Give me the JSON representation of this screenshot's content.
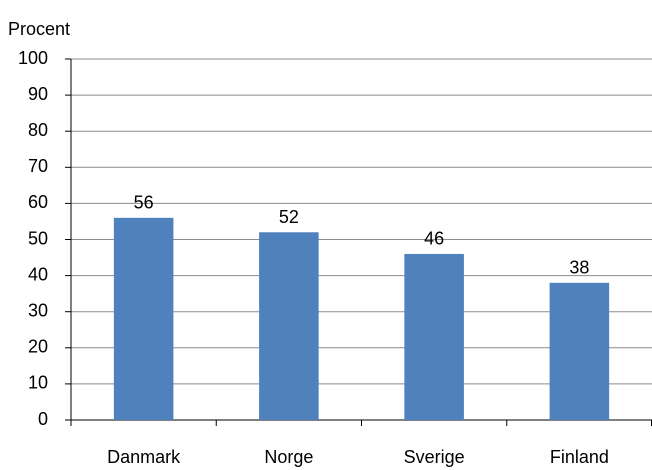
{
  "chart_data": {
    "type": "bar",
    "y_label": "Procent",
    "categories": [
      "Danmark",
      "Norge",
      "Sverige",
      "Finland"
    ],
    "values": [
      56,
      52,
      46,
      38
    ],
    "color": "#4f81bd",
    "ylim": [
      0,
      100
    ],
    "yticks": [
      0,
      10,
      20,
      30,
      40,
      50,
      60,
      70,
      80,
      90,
      100
    ],
    "grid": true
  }
}
